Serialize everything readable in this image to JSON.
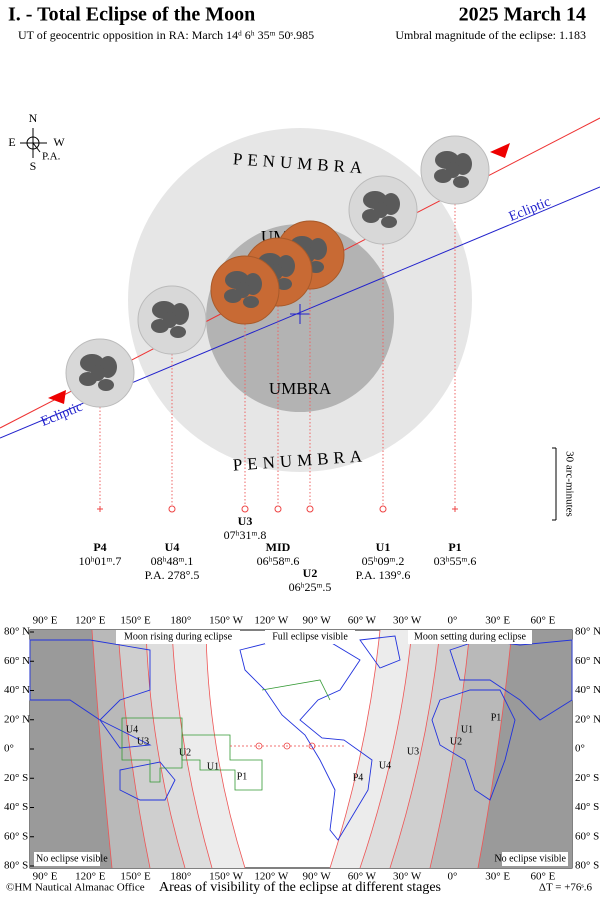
{
  "header": {
    "title": "I. - Total Eclipse of the Moon",
    "date": "2025 March 14",
    "opposition": "UT of geocentric opposition in RA: March 14ᵈ 6ʰ 35ᵐ 50ˢ.985",
    "magnitude": "Umbral magnitude of the eclipse: 1.183"
  },
  "compass": {
    "north": "N",
    "south": "S",
    "east": "E",
    "west": "W",
    "pa": "P.A."
  },
  "diagram": {
    "penumbra_top": "PENUMBRA",
    "penumbra_bottom": "PENUMBRA",
    "umbra_top": "UMBRA",
    "umbra_bottom": "UMBRA",
    "ecliptic_right": "Ecliptic",
    "ecliptic_left": "Ecliptic",
    "scale": "30 arc-minutes"
  },
  "contacts": [
    {
      "label": "P4",
      "time": "10ʰ01ᵐ.7"
    },
    {
      "label": "U4",
      "time": "08ʰ48ᵐ.1",
      "pa": "P.A. 278°.5"
    },
    {
      "label": "U3",
      "time": "07ʰ31ᵐ.8"
    },
    {
      "label": "MID",
      "time": "06ʰ58ᵐ.6"
    },
    {
      "label": "U2",
      "time": "06ʰ25ᵐ.5"
    },
    {
      "label": "U1",
      "time": "05ʰ09ᵐ.2",
      "pa": "P.A. 139°.6"
    },
    {
      "label": "P1",
      "time": "03ʰ55ᵐ.6"
    }
  ],
  "map": {
    "lon_labels": [
      "90° E",
      "120° E",
      "150° E",
      "180°",
      "150° W",
      "120° W",
      "90° W",
      "60° W",
      "30° W",
      "0°",
      "30° E",
      "60° E"
    ],
    "lat_labels": [
      "80° N",
      "60° N",
      "40° N",
      "20° N",
      "0°",
      "20° S",
      "40° S",
      "60° S",
      "80° S"
    ],
    "regions": {
      "rising": "Moon rising during eclipse",
      "full": "Full eclipse visible",
      "setting": "Moon setting during eclipse",
      "none_left": "No eclipse visible",
      "none_right": "No eclipse visible"
    },
    "stages_left": [
      "U4",
      "U3",
      "U2",
      "U1",
      "P1"
    ],
    "stages_middle": [
      "P4",
      "U4",
      "U3"
    ],
    "stages_right": [
      "P1",
      "U1",
      "U2"
    ]
  },
  "footer": {
    "copyright": "©HM Nautical Almanac Office",
    "caption": "Areas of visibility of the eclipse at different stages",
    "delta_t": "ΔT = +76ˢ.6"
  }
}
